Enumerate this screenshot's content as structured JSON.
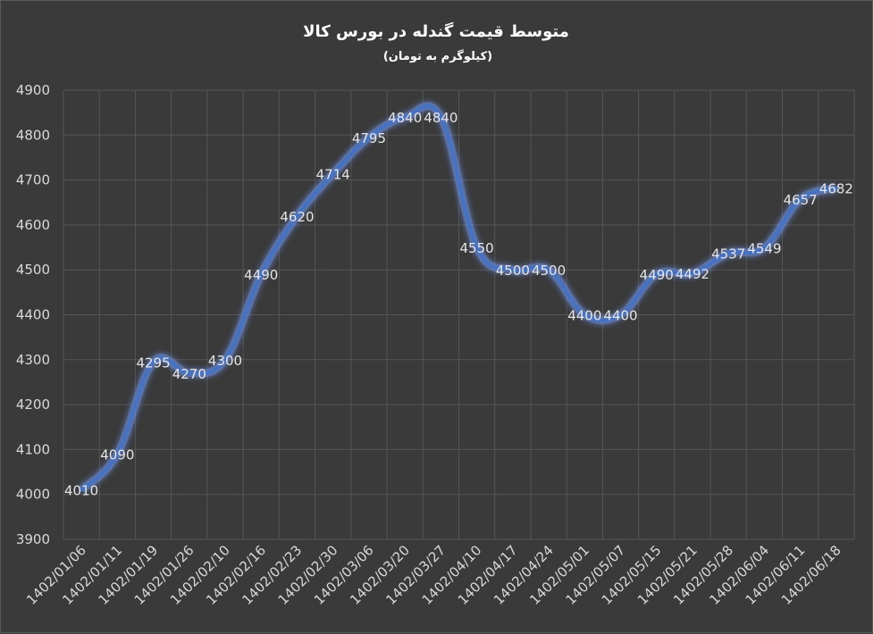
{
  "chart_data": {
    "type": "line",
    "title": "متوسط قیمت گندله در بورس کالا",
    "subtitle": "(کیلوگرم به تومان)",
    "categories": [
      "1402/01/06",
      "1402/01/11",
      "1402/01/19",
      "1402/01/26",
      "1402/02/10",
      "1402/02/16",
      "1402/02/23",
      "1402/02/30",
      "1402/03/06",
      "1402/03/20",
      "1402/03/27",
      "1402/04/10",
      "1402/04/17",
      "1402/04/24",
      "1402/05/01",
      "1402/05/07",
      "1402/05/15",
      "1402/05/21",
      "1402/05/28",
      "1402/06/04",
      "1402/06/11",
      "1402/06/18"
    ],
    "series": [
      {
        "values": [
          4010,
          4090,
          4295,
          4270,
          4300,
          4490,
          4620,
          4714,
          4795,
          4840,
          4840,
          4550,
          4500,
          4500,
          4400,
          4400,
          4490,
          4492,
          4537,
          4549,
          4657,
          4682
        ]
      }
    ],
    "data_labels": [
      "4010",
      "4090",
      "4295",
      "4270",
      "4300",
      "4490",
      "4620",
      "4714",
      "4795",
      "4840",
      "4840",
      "4550",
      "4500",
      "4500",
      "4400",
      "4400",
      "4490",
      "4492",
      "4537",
      "4549",
      "4657",
      "4682"
    ],
    "ylim": [
      3900,
      4900
    ],
    "yticks": [
      3900,
      4000,
      4100,
      4200,
      4300,
      4400,
      4500,
      4600,
      4700,
      4800,
      4900
    ],
    "grid": true,
    "line_color": "#4472c4",
    "glow_color": "#6f93e8"
  }
}
